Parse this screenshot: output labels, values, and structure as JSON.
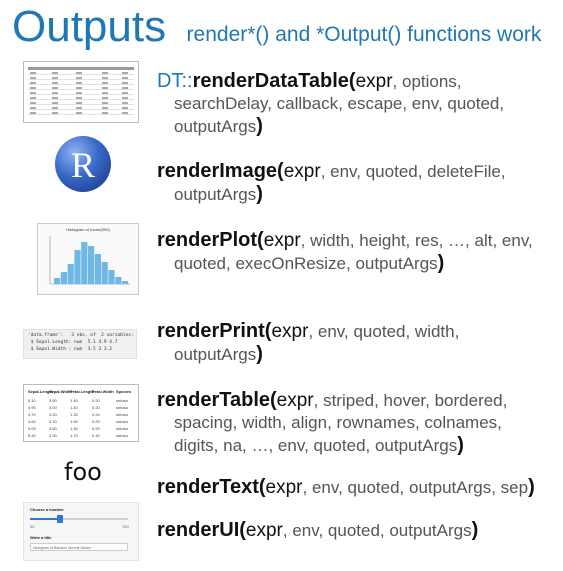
{
  "header": {
    "title": "Outputs",
    "subtitle": "render*()  and *Output() functions work"
  },
  "functions": [
    {
      "ns": "DT::",
      "name": "renderDataTable(",
      "line1_args": ", options,",
      "cont_lines": [
        "searchDelay, callback, escape, env, quoted,",
        "outputArgs"
      ]
    },
    {
      "ns": "",
      "name": "renderImage(",
      "line1_args": ", env, quoted, deleteFile,",
      "cont_lines": [
        "outputArgs"
      ]
    },
    {
      "ns": "",
      "name": "renderPlot(",
      "line1_args": ", width, height, res, …, alt, env,",
      "cont_lines": [
        "quoted, execOnResize, outputArgs"
      ]
    },
    {
      "ns": "",
      "name": "renderPrint(",
      "line1_args": ", env, quoted, width,",
      "cont_lines": [
        "outputArgs"
      ]
    },
    {
      "ns": "",
      "name": "renderTable(",
      "line1_args": ", striped, hover, bordered,",
      "cont_lines": [
        "spacing, width, align, rownames, colnames,",
        "digits, na, …, env, quoted, outputArgs"
      ]
    },
    {
      "ns": "",
      "name": "renderText(",
      "line1_args": ", env, quoted, outputArgs, sep",
      "cont_lines": []
    },
    {
      "ns": "",
      "name": "renderUI(",
      "line1_args": ", env, quoted, outputArgs",
      "cont_lines": []
    }
  ],
  "expr_label": "expr",
  "close_paren": ")",
  "thumbnails": {
    "r_logo_letter": "R",
    "plot_title": "Histogram of rnorm(500)",
    "print_lines": [
      "'data.frame':   3 obs. of  2 variables:",
      " $ Sepal.Length: num  5.1 4.9 4.7",
      " $ Sepal.Width : num  3.5 3 3.2"
    ],
    "table_headers": [
      "Sepal.Length",
      "Sepal.Width",
      "Petal.Length",
      "Petal.Width",
      "Species"
    ],
    "table_rows": [
      [
        "5.10",
        "3.50",
        "1.40",
        "0.20",
        "setosa"
      ],
      [
        "4.90",
        "3.00",
        "1.40",
        "0.20",
        "setosa"
      ],
      [
        "4.70",
        "3.20",
        "1.30",
        "0.20",
        "setosa"
      ],
      [
        "4.60",
        "3.10",
        "1.50",
        "0.20",
        "setosa"
      ],
      [
        "5.00",
        "3.60",
        "1.40",
        "0.20",
        "setosa"
      ],
      [
        "5.40",
        "3.90",
        "1.70",
        "0.40",
        "setosa"
      ]
    ],
    "foo_text": "foo",
    "ui_choose_label": "Choose a number",
    "ui_slider_value": "30",
    "ui_slider_max": "100",
    "ui_title_label": "Write a title",
    "ui_title_value": "Histogram of Random Normal Values"
  },
  "colors": {
    "accent": "#1f77b4",
    "hist_bar": "#6fb8e6"
  }
}
